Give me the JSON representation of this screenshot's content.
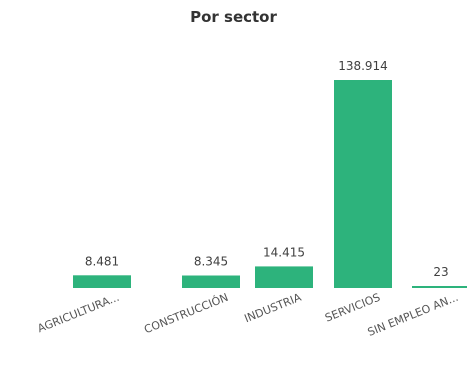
{
  "chart_data": {
    "type": "bar",
    "title": "Por sector",
    "categories": [
      "AGRICULTURA...",
      "CONSTRUCCIÓN",
      "INDUSTRIA",
      "SERVICIOS",
      "SIN EMPLEO AN..."
    ],
    "values": [
      8481,
      8345,
      14415,
      138914,
      23
    ],
    "data_labels": [
      "8.481",
      "8.345",
      "14.415",
      "138.914",
      "23"
    ],
    "ylim": [
      0,
      138914
    ],
    "grid": false,
    "legend": "none",
    "bar_color": "#2db37c"
  }
}
